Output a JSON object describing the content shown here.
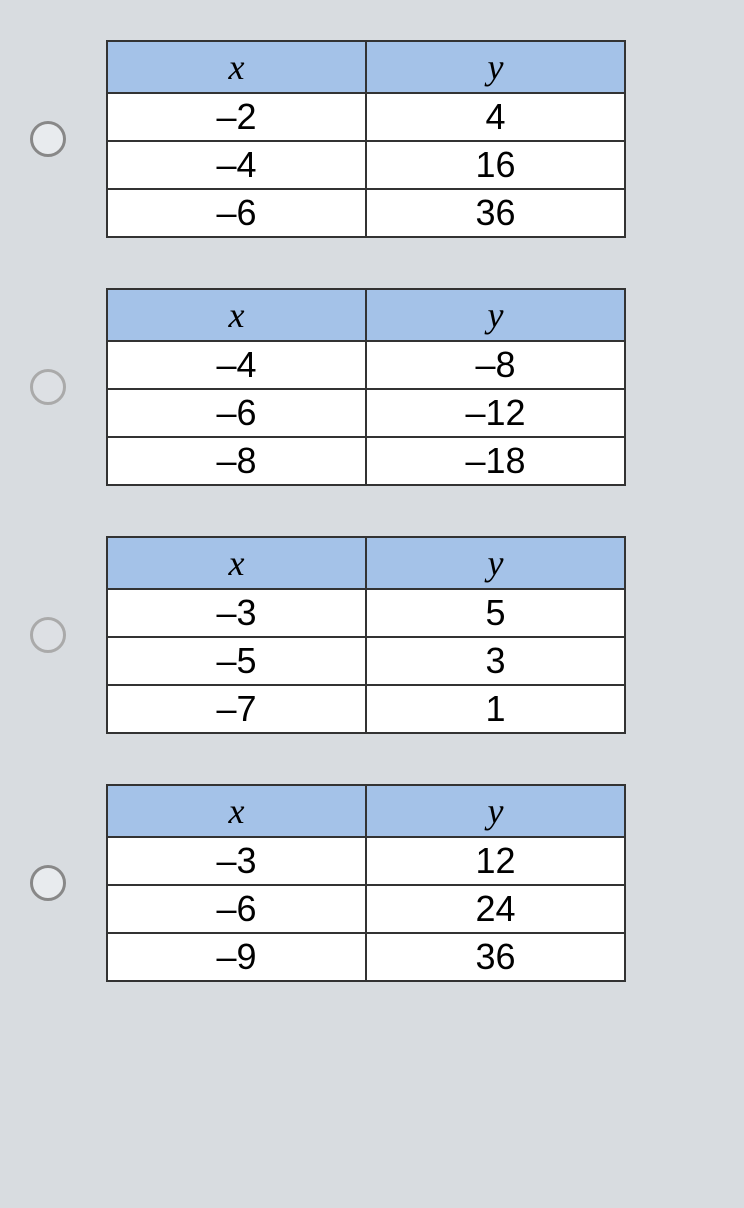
{
  "tables": [
    {
      "header_bg": "#a4c2e8",
      "columns": [
        "x",
        "y"
      ],
      "rows": [
        [
          "–2",
          "4"
        ],
        [
          "–4",
          "16"
        ],
        [
          "–6",
          "36"
        ]
      ]
    },
    {
      "header_bg": "#a4c2e8",
      "columns": [
        "x",
        "y"
      ],
      "rows": [
        [
          "–4",
          "–8"
        ],
        [
          "–6",
          "–12"
        ],
        [
          "–8",
          "–18"
        ]
      ]
    },
    {
      "header_bg": "#a4c2e8",
      "columns": [
        "x",
        "y"
      ],
      "rows": [
        [
          "–3",
          "5"
        ],
        [
          "–5",
          "3"
        ],
        [
          "–7",
          "1"
        ]
      ]
    },
    {
      "header_bg": "#a4c2e8",
      "columns": [
        "x",
        "y"
      ],
      "rows": [
        [
          "–3",
          "12"
        ],
        [
          "–6",
          "24"
        ],
        [
          "–9",
          "36"
        ]
      ]
    }
  ]
}
